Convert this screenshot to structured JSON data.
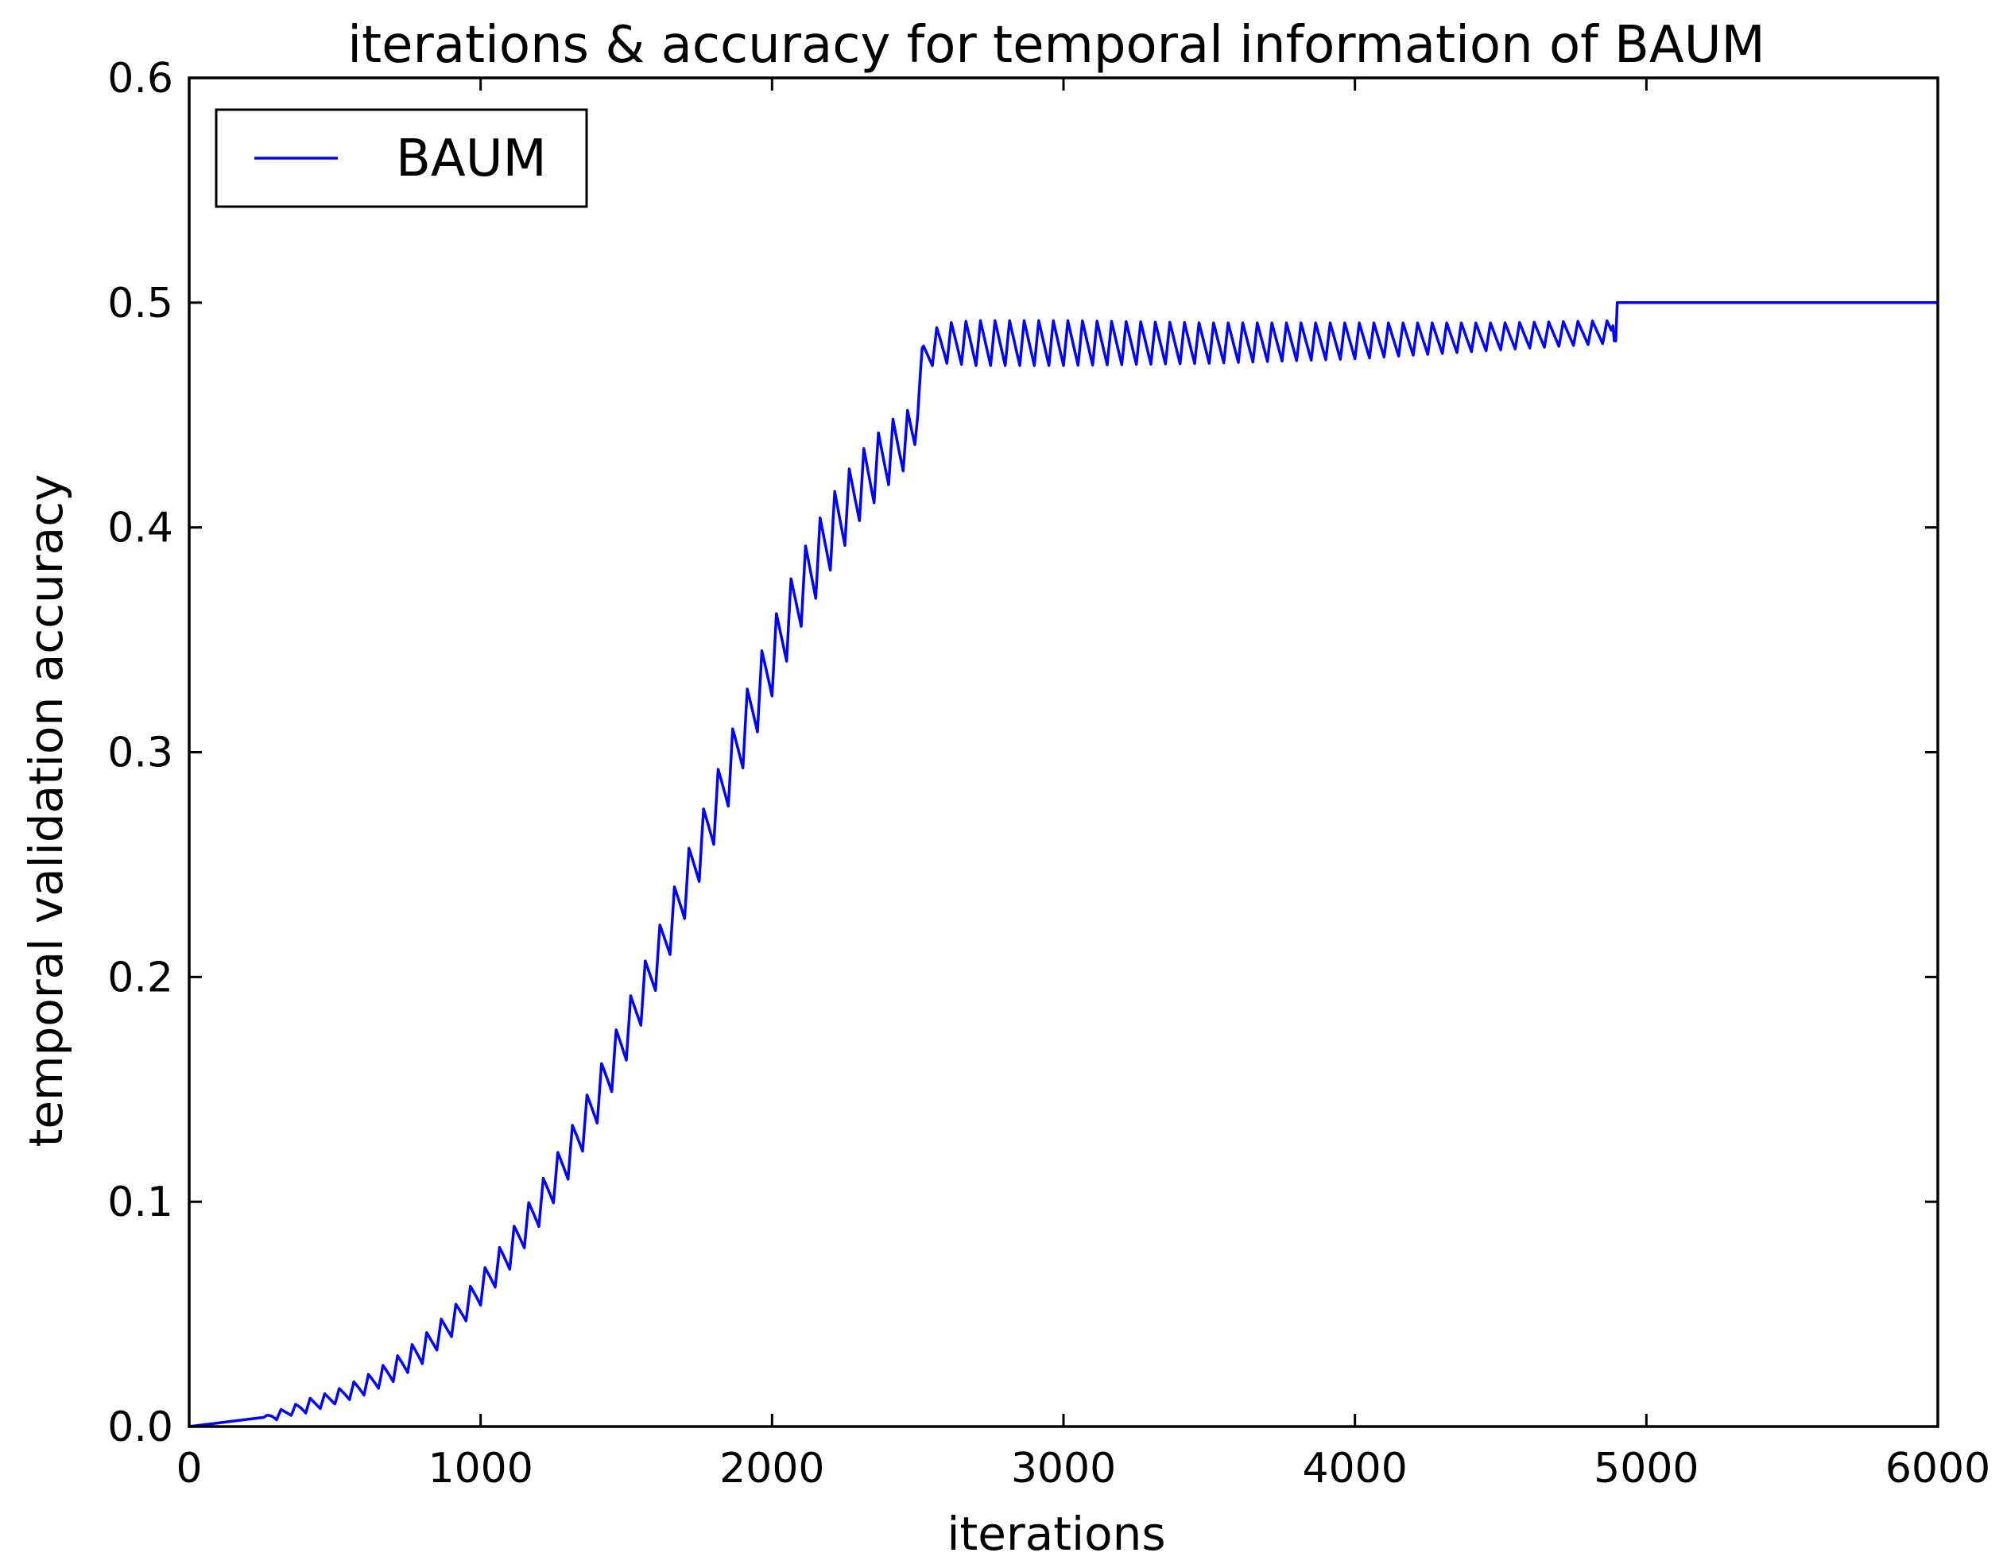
{
  "chart_data": {
    "type": "line",
    "title": "iterations & accuracy for temporal information of BAUM",
    "xlabel": "iterations",
    "ylabel": "temporal validation accuracy",
    "xlim": [
      0,
      6000
    ],
    "ylim": [
      0.0,
      0.6
    ],
    "xticks": [
      "0",
      "1000",
      "2000",
      "3000",
      "4000",
      "5000",
      "6000"
    ],
    "yticks": [
      "0.0",
      "0.1",
      "0.2",
      "0.3",
      "0.4",
      "0.5",
      "0.6"
    ],
    "grid": false,
    "legend_position": "top-left",
    "series": [
      {
        "name": "BAUM",
        "color": "#0000ff",
        "x": [
          0,
          250,
          300,
          350,
          400,
          500,
          600,
          700,
          800,
          900,
          1000,
          1100,
          1200,
          1300,
          1400,
          1500,
          1600,
          1700,
          1800,
          1900,
          2000,
          2100,
          2200,
          2300,
          2400,
          2490,
          2500,
          2520,
          2550,
          2600,
          2700,
          2800,
          3000,
          3500,
          4000,
          4500,
          4880,
          4900,
          6000
        ],
        "y": [
          0.0,
          0.004,
          0.005,
          0.007,
          0.009,
          0.013,
          0.018,
          0.025,
          0.034,
          0.046,
          0.061,
          0.078,
          0.098,
          0.12,
          0.146,
          0.175,
          0.206,
          0.239,
          0.273,
          0.308,
          0.341,
          0.372,
          0.397,
          0.418,
          0.433,
          0.442,
          0.46,
          0.475,
          0.48,
          0.482,
          0.482,
          0.482,
          0.482,
          0.482,
          0.483,
          0.485,
          0.487,
          0.5,
          0.5
        ],
        "oscillation_amplitude": [
          0.0,
          0.0,
          0.002,
          0.002,
          0.003,
          0.003,
          0.004,
          0.005,
          0.006,
          0.006,
          0.007,
          0.008,
          0.009,
          0.01,
          0.011,
          0.012,
          0.012,
          0.013,
          0.014,
          0.015,
          0.016,
          0.016,
          0.016,
          0.015,
          0.014,
          0.012,
          0.01,
          0.008,
          0.008,
          0.009,
          0.01,
          0.01,
          0.01,
          0.009,
          0.008,
          0.006,
          0.005,
          0.0,
          0.0
        ]
      }
    ]
  }
}
